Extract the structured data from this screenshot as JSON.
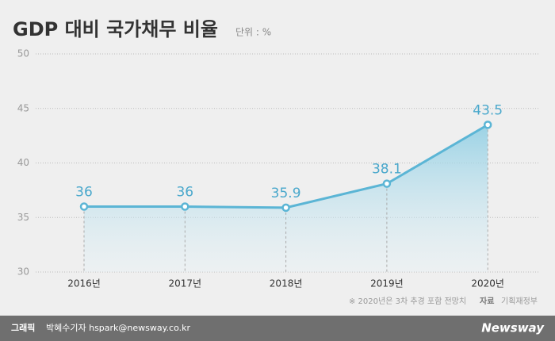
{
  "chart_data": {
    "type": "line",
    "title": "GDP 대비 국가채무 비율",
    "subtitle": "단위 : %",
    "categories": [
      "2016년",
      "2017년",
      "2018년",
      "2019년",
      "2020년"
    ],
    "values": [
      36,
      36,
      35.9,
      38.1,
      43.5
    ],
    "color": "#5bb5d5",
    "ylim": [
      30,
      50
    ],
    "yticks": [
      30,
      35,
      40,
      45,
      50
    ],
    "grid": true,
    "note": "※  2020년은 3차 추경 포함 전망치",
    "source_label": "자료",
    "source": "기획재정부"
  },
  "footer": {
    "credit_label": "그래픽",
    "credit": "박혜수기자 hspark@newsway.co.kr",
    "logo": "Newsway"
  }
}
